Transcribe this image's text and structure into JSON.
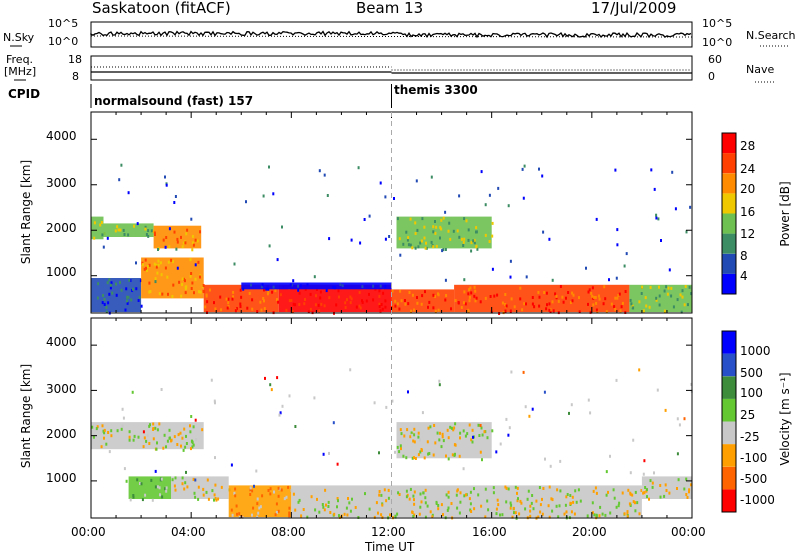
{
  "header": {
    "station": "Saskatoon (fitACF)",
    "beam": "Beam 13",
    "date": "17/Jul/2009"
  },
  "strip": {
    "nsky_label": "N.Sky",
    "nsearch_label": "N.Search",
    "freq_label": "Freq.",
    "freq_unit": "[MHz]",
    "nave_label": "Nave",
    "cpid_label": "CPID",
    "nsky_ticks": [
      "10^5",
      "10^0"
    ],
    "nsearch_ticks": [
      "10^5",
      "10^0"
    ],
    "freq_ticks": [
      "18",
      "8"
    ],
    "nave_ticks": [
      "60",
      "0"
    ]
  },
  "modes": [
    {
      "label": "normalsound (fast) 157"
    },
    {
      "label": "themis 3300"
    }
  ],
  "colors": {
    "power_scale": [
      "#0000ff",
      "#224ab4",
      "#3c8c64",
      "#6ec050",
      "#f0c800",
      "#ff8c00",
      "#ff4000",
      "#ff0000"
    ],
    "velocity_scale": [
      "#0000ff",
      "#2850c8",
      "#3c8c3c",
      "#64c832",
      "#c8c8c8",
      "#ffa000",
      "#ff6400",
      "#ff0000"
    ],
    "velocity_ground": "#c8c8c8"
  },
  "chart_data": [
    {
      "type": "heatmap",
      "quantity": "power",
      "ylabel": "Slant Range [km]",
      "xlim": [
        0,
        24
      ],
      "ylim": [
        180,
        4600
      ],
      "y_ticks": [
        "1000",
        "2000",
        "3000",
        "4000"
      ],
      "colorbar_label": "Power [dB]",
      "colorbar_ticks": [
        "4",
        "8",
        "12",
        "16",
        "20",
        "24",
        "28"
      ],
      "echo_regions": [
        {
          "t": [
            0.0,
            0.5
          ],
          "r": [
            1800,
            2300
          ],
          "level": 3
        },
        {
          "t": [
            0.5,
            2.5
          ],
          "r": [
            1850,
            2150
          ],
          "level": 3
        },
        {
          "t": [
            2.5,
            4.4
          ],
          "r": [
            1600,
            2100
          ],
          "level": 5
        },
        {
          "t": [
            0.0,
            2.0
          ],
          "r": [
            200,
            950
          ],
          "level": 1
        },
        {
          "t": [
            2.0,
            4.5
          ],
          "r": [
            500,
            1400
          ],
          "level": 5
        },
        {
          "t": [
            4.5,
            7.5
          ],
          "r": [
            200,
            800
          ],
          "level": 6
        },
        {
          "t": [
            7.5,
            12.0
          ],
          "r": [
            200,
            800
          ],
          "level": 7
        },
        {
          "t": [
            12.0,
            14.5
          ],
          "r": [
            200,
            700
          ],
          "level": 6
        },
        {
          "t": [
            14.5,
            21.5
          ],
          "r": [
            200,
            800
          ],
          "level": 6
        },
        {
          "t": [
            21.5,
            24.0
          ],
          "r": [
            200,
            800
          ],
          "level": 3
        },
        {
          "t": [
            12.2,
            16.0
          ],
          "r": [
            1600,
            2300
          ],
          "level": 3
        },
        {
          "t": [
            6.0,
            12.0
          ],
          "r": [
            700,
            850
          ],
          "level": 0
        }
      ]
    },
    {
      "type": "heatmap",
      "quantity": "velocity",
      "xlabel": "Time UT",
      "ylabel": "Slant Range [km]",
      "xlim": [
        0,
        24
      ],
      "ylim": [
        180,
        4600
      ],
      "x_ticks": [
        "00:00",
        "04:00",
        "08:00",
        "12:00",
        "16:00",
        "20:00",
        "00:00"
      ],
      "y_ticks": [
        "1000",
        "2000",
        "3000",
        "4000"
      ],
      "colorbar_label": "Velocity [m s⁻¹]",
      "colorbar_ticks": [
        "1000",
        "500",
        "100",
        "25",
        "-25",
        "-100",
        "-500",
        "-1000"
      ],
      "echo_regions": [
        {
          "t": [
            0.0,
            4.5
          ],
          "r": [
            1700,
            2300
          ],
          "level": 4
        },
        {
          "t": [
            1.5,
            3.2
          ],
          "r": [
            600,
            1100
          ],
          "level": 3
        },
        {
          "t": [
            3.2,
            5.5
          ],
          "r": [
            600,
            1100
          ],
          "level": 4
        },
        {
          "t": [
            5.5,
            8.0
          ],
          "r": [
            200,
            900
          ],
          "level": 5
        },
        {
          "t": [
            8.0,
            22.0
          ],
          "r": [
            200,
            900
          ],
          "level": 4
        },
        {
          "t": [
            12.2,
            16.0
          ],
          "r": [
            1500,
            2300
          ],
          "level": 4
        },
        {
          "t": [
            22.0,
            24.0
          ],
          "r": [
            600,
            1100
          ],
          "level": 4
        }
      ]
    }
  ]
}
